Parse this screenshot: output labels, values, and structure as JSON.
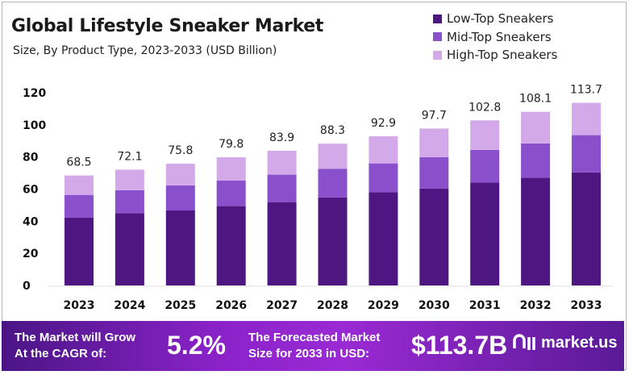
{
  "chart_data": {
    "type": "bar",
    "stacked": true,
    "title": "Global Lifestyle Sneaker Market",
    "subtitle": "Size, By Product Type, 2023-2033 (USD Billion)",
    "categories": [
      "2023",
      "2024",
      "2025",
      "2026",
      "2027",
      "2028",
      "2029",
      "2030",
      "2031",
      "2032",
      "2033"
    ],
    "series": [
      {
        "name": "Low-Top Sneakers",
        "color": "#4d1680",
        "values": [
          42.2,
          45.0,
          46.7,
          49.4,
          51.9,
          54.8,
          58.1,
          60.3,
          64.0,
          67.0,
          70.4
        ]
      },
      {
        "name": "Mid-Top Sneakers",
        "color": "#8a4fcb",
        "values": [
          14.2,
          14.3,
          15.6,
          15.9,
          17.1,
          17.9,
          17.9,
          19.6,
          20.4,
          21.4,
          23.2
        ]
      },
      {
        "name": "High-Top Sneakers",
        "color": "#d3a9ea",
        "values": [
          12.1,
          12.8,
          13.5,
          14.5,
          14.9,
          15.6,
          16.9,
          17.8,
          18.4,
          19.7,
          20.1
        ]
      }
    ],
    "totals": [
      "68.5",
      "72.1",
      "75.8",
      "79.8",
      "83.9",
      "88.3",
      "92.9",
      "97.7",
      "102.8",
      "108.1",
      "113.7"
    ],
    "yticks": [
      "0",
      "20",
      "40",
      "60",
      "80",
      "100",
      "120"
    ],
    "ylim": [
      0,
      120
    ],
    "grid": false,
    "legend_position": "top-right"
  },
  "banner": {
    "cagr_label_1": "The Market will Grow",
    "cagr_label_2": "At the CAGR of:",
    "cagr_value": "5.2%",
    "forecast_label_1": "The Forecasted Market",
    "forecast_label_2": "Size for 2033 in USD:",
    "forecast_value": "$113.7B",
    "logo": "market.us"
  }
}
